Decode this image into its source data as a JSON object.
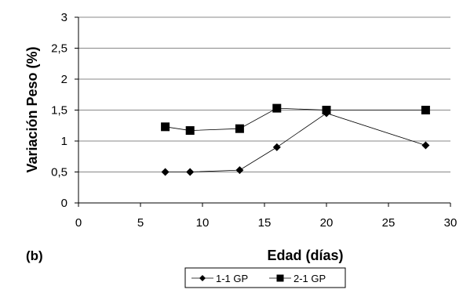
{
  "panel_label": "(b)",
  "chart_data": {
    "type": "line",
    "title": "",
    "xlabel": "Edad (días)",
    "ylabel": "Variación Peso (%)",
    "xlim": [
      0,
      30
    ],
    "ylim": [
      0,
      3
    ],
    "x_ticks": [
      "0",
      "5",
      "10",
      "15",
      "20",
      "25",
      "30"
    ],
    "y_ticks": [
      "0",
      "0,5",
      "1",
      "1,5",
      "2",
      "2,5",
      "3"
    ],
    "x_tick_values": [
      0,
      5,
      10,
      15,
      20,
      25,
      30
    ],
    "y_tick_values": [
      0,
      0.5,
      1,
      1.5,
      2,
      2.5,
      3
    ],
    "grid": "horizontal",
    "legend_position": "bottom",
    "series": [
      {
        "name": "1-1 GP",
        "marker": "diamond",
        "x": [
          7,
          9,
          13,
          16,
          20,
          28
        ],
        "y": [
          0.5,
          0.5,
          0.53,
          0.9,
          1.45,
          0.93
        ]
      },
      {
        "name": "2-1 GP",
        "marker": "square",
        "x": [
          7,
          9,
          13,
          16,
          20,
          28
        ],
        "y": [
          1.23,
          1.17,
          1.2,
          1.53,
          1.5,
          1.5
        ]
      }
    ]
  }
}
